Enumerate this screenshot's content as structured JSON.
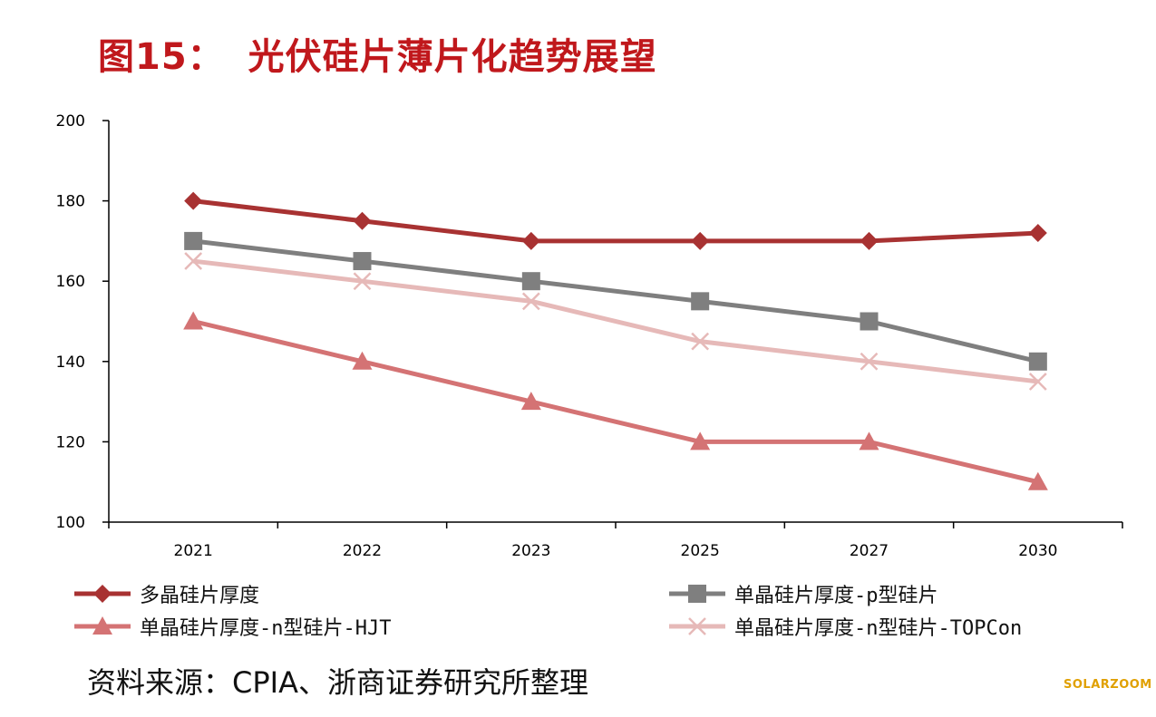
{
  "title_prefix": "图15：",
  "title_text": "光伏硅片薄片化趋势展望",
  "source": "资料来源：CPIA、浙商证券研究所整理",
  "watermark": "SOLARZOOM",
  "chart_data": {
    "type": "line",
    "categories": [
      "2021",
      "2022",
      "2023",
      "2025",
      "2027",
      "2030"
    ],
    "ylim": [
      100,
      200
    ],
    "yticks": [
      100,
      120,
      140,
      160,
      180,
      200
    ],
    "grid": false,
    "legend": "bottom",
    "series": [
      {
        "name": "多晶硅片厚度",
        "values": [
          180,
          175,
          170,
          170,
          170,
          172
        ],
        "color": "#a83232",
        "marker": "diamond"
      },
      {
        "name": "单晶硅片厚度-p型硅片",
        "values": [
          170,
          165,
          160,
          155,
          150,
          140
        ],
        "color": "#7f7f7f",
        "marker": "square"
      },
      {
        "name": "单晶硅片厚度-n型硅片-HJT",
        "values": [
          150,
          140,
          130,
          120,
          120,
          110
        ],
        "color": "#d47374",
        "marker": "triangle"
      },
      {
        "name": "单晶硅片厚度-n型硅片-TOPCon",
        "values": [
          165,
          160,
          155,
          145,
          140,
          135
        ],
        "color": "#e6b9b8",
        "marker": "x"
      }
    ]
  }
}
